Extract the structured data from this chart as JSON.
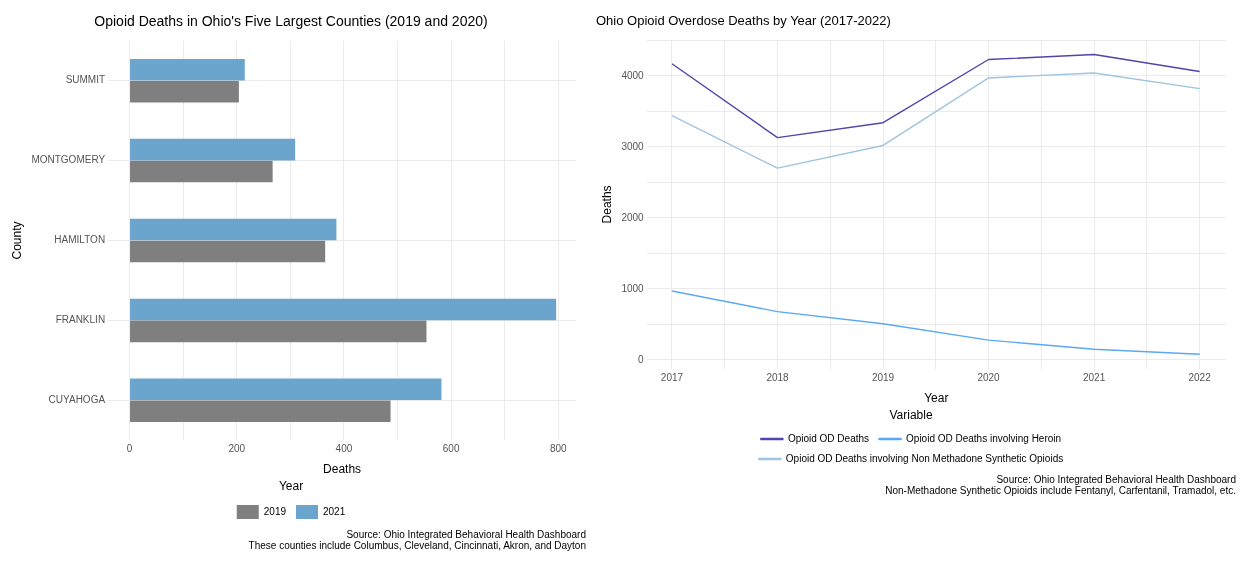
{
  "chart_data": [
    {
      "type": "bar",
      "orientation": "horizontal",
      "title": "Opioid Deaths in Ohio's Five Largest Counties (2019 and 2020)",
      "xlabel": "Deaths",
      "ylabel": "County",
      "legend_title": "Year",
      "legend": "bottom",
      "grid": true,
      "categories": [
        "SUMMIT",
        "MONTGOMERY",
        "HAMILTON",
        "FRANKLIN",
        "CUYAHOGA"
      ],
      "xlim": [
        -40,
        833
      ],
      "xticks": [
        0,
        {
          "value": 100,
          "label": null
        },
        200,
        {
          "value": 300,
          "label": null
        },
        400,
        {
          "value": 500,
          "label": null
        },
        600,
        {
          "value": 700,
          "label": null
        },
        800
      ],
      "series": [
        {
          "name": "2019",
          "color": "#7f7f7f",
          "values": [
            204,
            267,
            365,
            554,
            487
          ]
        },
        {
          "name": "2021",
          "color": "#6ba5cd",
          "values": [
            215,
            309,
            386,
            796,
            582
          ]
        }
      ],
      "annotations": [
        "Source: Ohio Integrated Behavioral Health Dashboard",
        "These counties include Columbus, Cleveland, Cincinnati, Akron, and Dayton"
      ]
    },
    {
      "type": "line",
      "title": "Ohio Opioid Overdose Deaths by Year (2017-2022)",
      "xlabel": "Year",
      "ylabel": "Deaths",
      "legend_title": "Variable",
      "legend": "bottom",
      "grid": true,
      "marker": "none",
      "line_style": "solid",
      "x": [
        2017,
        2018,
        2019,
        2020,
        2021,
        2022
      ],
      "xlim": [
        2016.76,
        2022.25
      ],
      "xticks": [
        2017,
        {
          "value": 2017.5,
          "label": null
        },
        2018,
        {
          "value": 2018.5,
          "label": null
        },
        2019,
        {
          "value": 2019.5,
          "label": null
        },
        2020,
        {
          "value": 2020.5,
          "label": null
        },
        2021,
        {
          "value": 2021.5,
          "label": null
        },
        2022
      ],
      "ylim": [
        -130,
        4510
      ],
      "yticks": [
        0,
        {
          "value": 500,
          "label": null
        },
        1000,
        {
          "value": 1500,
          "label": null
        },
        2000,
        {
          "value": 2500,
          "label": null
        },
        3000,
        {
          "value": 3500,
          "label": null
        },
        4000,
        {
          "value": 4500,
          "label": null
        }
      ],
      "series": [
        {
          "name": "Opioid OD Deaths",
          "color": "#4f45aa",
          "values": [
            4170,
            3130,
            3340,
            4230,
            4300,
            4060
          ]
        },
        {
          "name": "Opioid OD Deaths involving Heroin",
          "color": "#5aa9f2",
          "values": [
            970,
            680,
            510,
            280,
            150,
            80
          ]
        },
        {
          "name": "Opioid OD Deaths involving Non Methadone Synthetic Opioids",
          "color": "#9ec4e0",
          "values": [
            3440,
            2700,
            3020,
            3970,
            4040,
            3820
          ]
        }
      ],
      "annotations": [
        "Source: Ohio Integrated Behavioral Health Dashboard",
        "Non-Methadone Synthetic Opioids include Fentanyl, Carfentanil, Tramadol, etc."
      ]
    }
  ]
}
